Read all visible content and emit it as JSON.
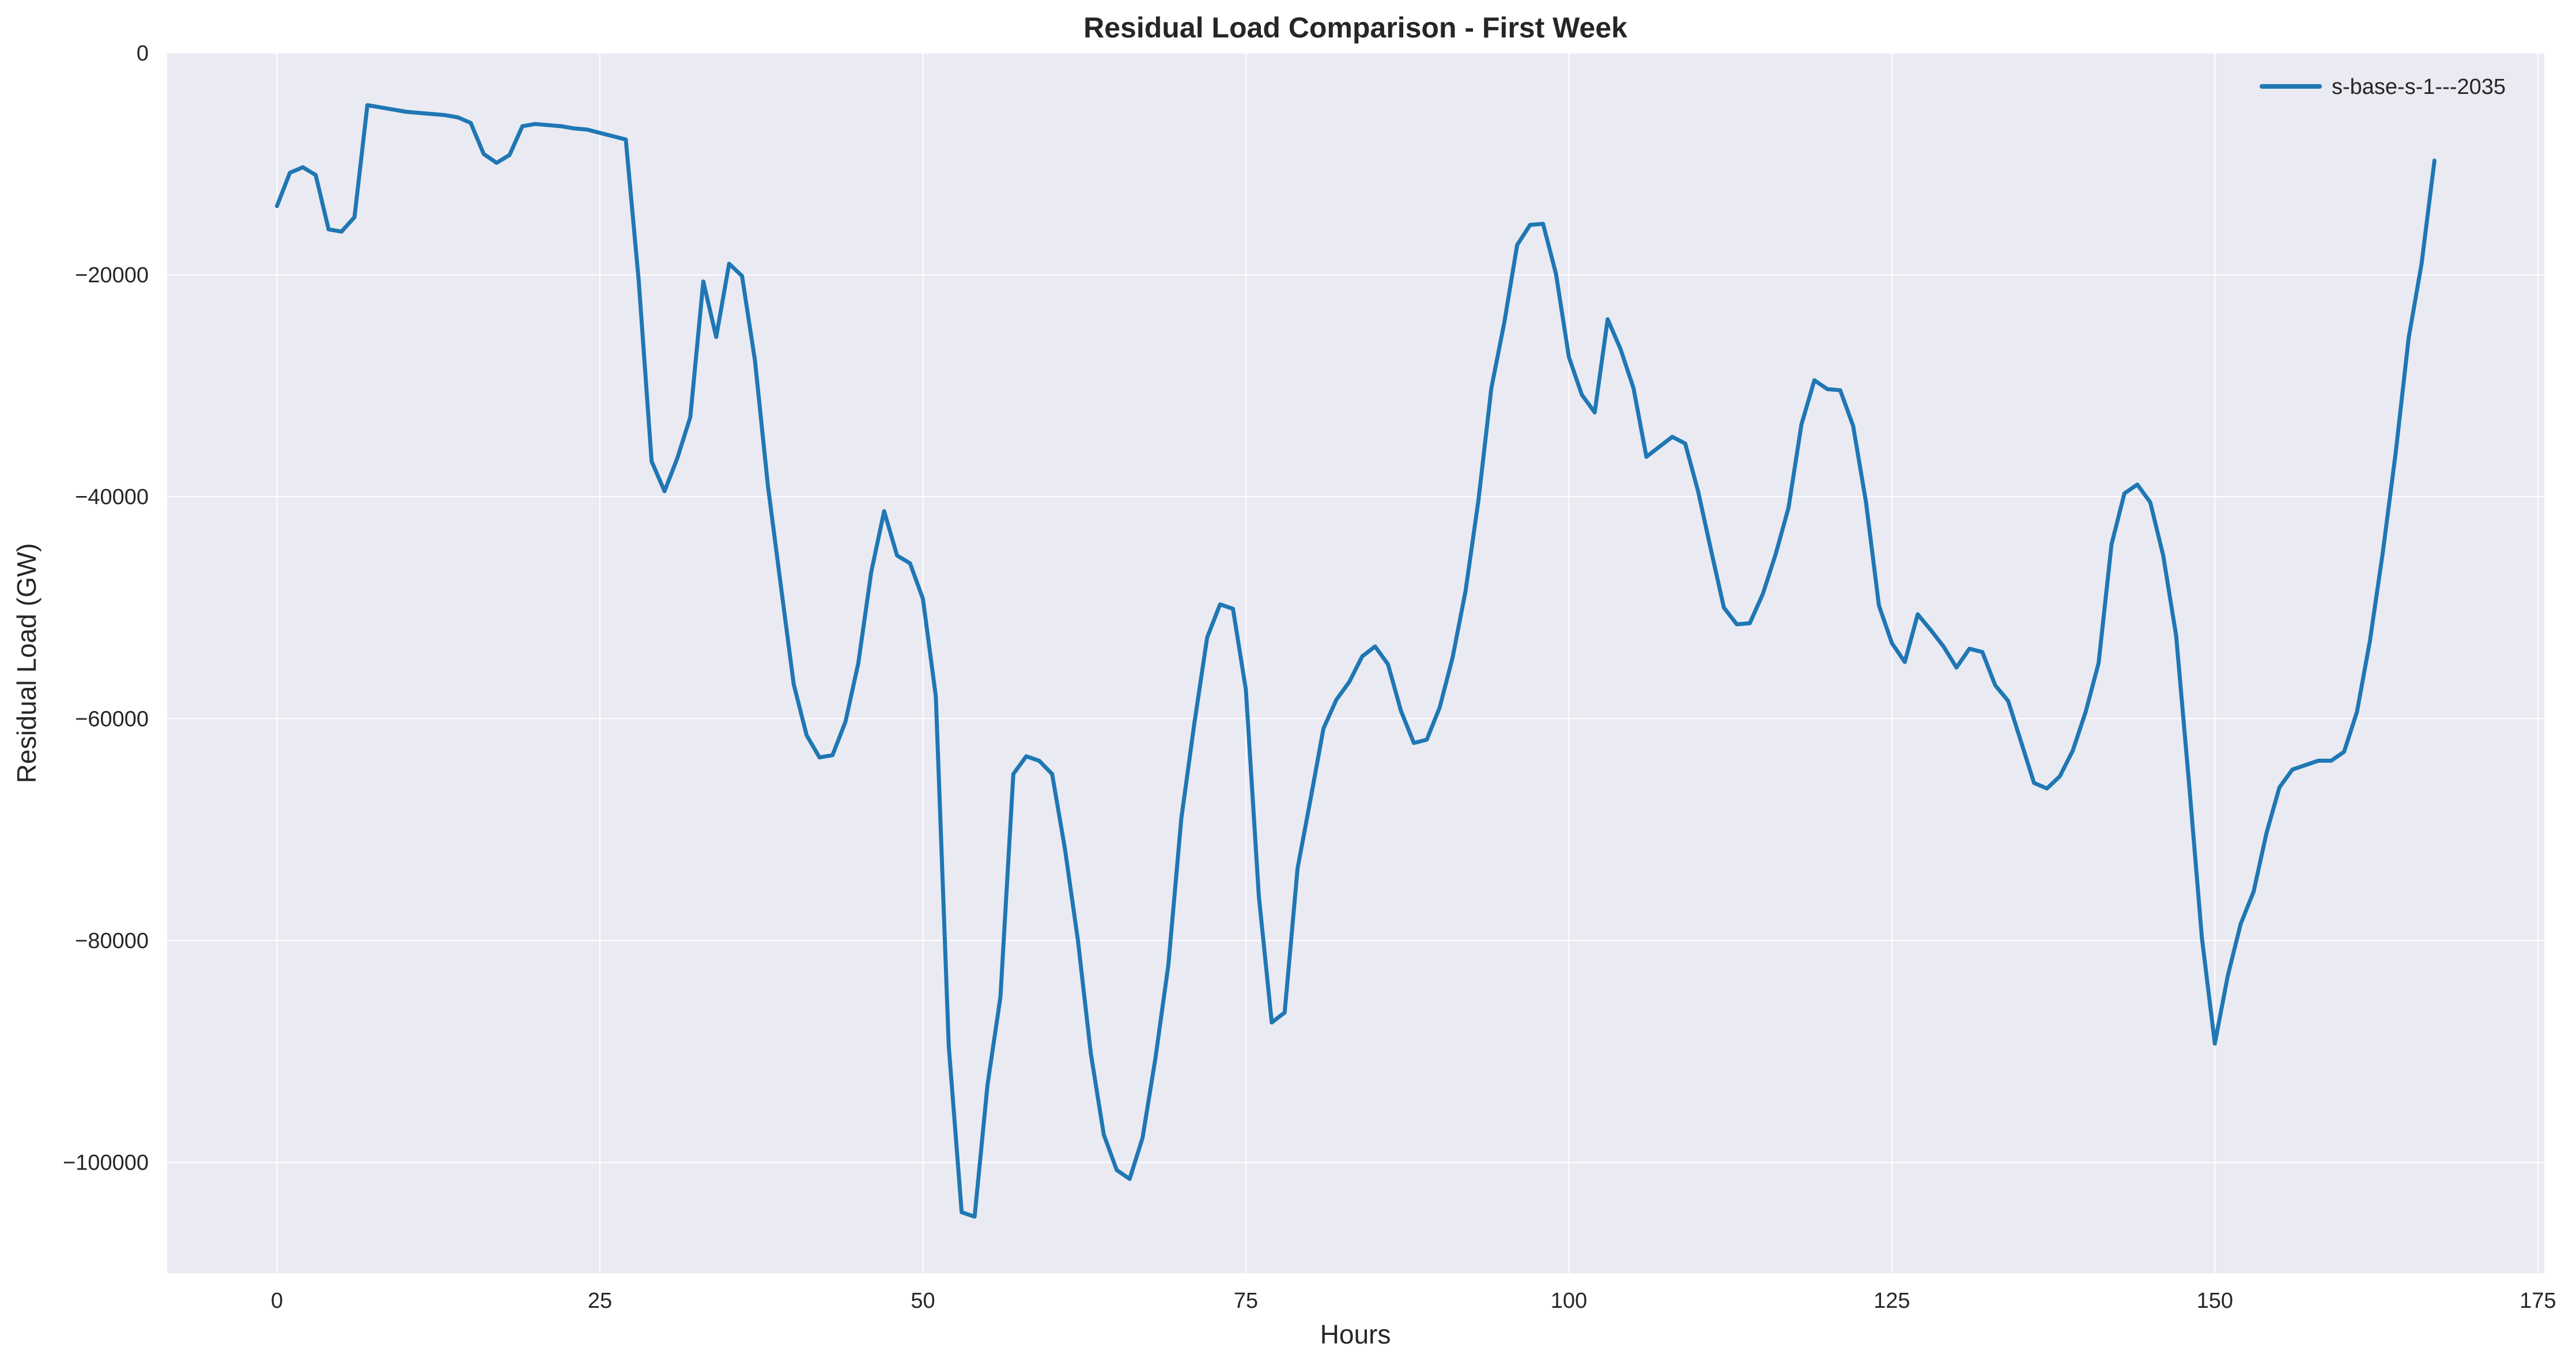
{
  "chart_data": {
    "type": "line",
    "title": "Residual Load Comparison - First Week",
    "xlabel": "Hours",
    "ylabel": "Residual Load (GW)",
    "xlim": [
      -8.5,
      175.5
    ],
    "ylim": [
      -110000,
      0
    ],
    "xticks": [
      0,
      25,
      50,
      75,
      100,
      125,
      150,
      175
    ],
    "yticks": [
      0,
      -20000,
      -40000,
      -60000,
      -80000,
      -100000
    ],
    "xtick_labels": [
      "0",
      "25",
      "50",
      "75",
      "100",
      "125",
      "150",
      "175"
    ],
    "ytick_labels": [
      "0",
      "−20000",
      "−40000",
      "−60000",
      "−80000",
      "−100000"
    ],
    "grid": true,
    "legend_position": "top-right",
    "colors": {
      "series": "#1f77b4",
      "plot_bg": "#eaeaf2",
      "grid": "#ffffff",
      "text": "#262626"
    },
    "series": [
      {
        "name": "s-base-s-1---2035",
        "x": [
          0,
          1,
          2,
          3,
          4,
          5,
          6,
          7,
          8,
          9,
          10,
          11,
          12,
          13,
          14,
          15,
          16,
          17,
          18,
          19,
          20,
          21,
          22,
          23,
          24,
          25,
          26,
          27,
          28,
          29,
          30,
          31,
          32,
          33,
          34,
          35,
          36,
          37,
          38,
          39,
          40,
          41,
          42,
          43,
          44,
          45,
          46,
          47,
          48,
          49,
          50,
          51,
          52,
          53,
          54,
          55,
          56,
          57,
          58,
          59,
          60,
          61,
          62,
          63,
          64,
          65,
          66,
          67,
          68,
          69,
          70,
          71,
          72,
          73,
          74,
          75,
          76,
          77,
          78,
          79,
          80,
          81,
          82,
          83,
          84,
          85,
          86,
          87,
          88,
          89,
          90,
          91,
          92,
          93,
          94,
          95,
          96,
          97,
          98,
          99,
          100,
          101,
          102,
          103,
          104,
          105,
          106,
          107,
          108,
          109,
          110,
          111,
          112,
          113,
          114,
          115,
          116,
          117,
          118,
          119,
          120,
          121,
          122,
          123,
          124,
          125,
          126,
          127,
          128,
          129,
          130,
          131,
          132,
          133,
          134,
          135,
          136,
          137,
          138,
          139,
          140,
          141,
          142,
          143,
          144,
          145,
          146,
          147,
          148,
          149,
          150,
          151,
          152,
          153,
          154,
          155,
          156,
          157,
          158,
          159,
          160,
          161,
          162,
          163,
          164,
          165,
          166,
          167
        ],
        "values": [
          -13800,
          -10800,
          -10300,
          -11000,
          -15900,
          -16100,
          -14800,
          -4700,
          -4900,
          -5100,
          -5300,
          -5400,
          -5500,
          -5600,
          -5800,
          -6300,
          -9100,
          -9900,
          -9200,
          -6600,
          -6400,
          -6500,
          -6600,
          -6800,
          -6900,
          -7200,
          -7500,
          -7800,
          -20500,
          -36800,
          -39500,
          -36500,
          -32800,
          -20600,
          -25600,
          -19000,
          -20100,
          -27700,
          -39000,
          -48000,
          -56900,
          -61500,
          -63500,
          -63300,
          -60300,
          -55000,
          -46800,
          -41300,
          -45300,
          -46000,
          -49200,
          -58000,
          -89500,
          -104500,
          -104900,
          -93000,
          -85100,
          -65000,
          -63400,
          -63800,
          -65000,
          -71800,
          -80000,
          -90200,
          -97500,
          -100700,
          -101500,
          -97800,
          -90600,
          -82200,
          -69000,
          -60500,
          -52700,
          -49700,
          -50100,
          -57400,
          -76000,
          -87400,
          -86500,
          -73500,
          -67300,
          -60900,
          -58300,
          -56700,
          -54400,
          -53500,
          -55100,
          -59300,
          -62200,
          -61900,
          -59000,
          -54500,
          -48500,
          -40300,
          -30200,
          -24300,
          -17300,
          -15500,
          -15400,
          -19900,
          -27400,
          -30800,
          -32400,
          -24000,
          -26700,
          -30200,
          -36400,
          -35500,
          -34600,
          -35200,
          -39500,
          -44800,
          -50000,
          -51500,
          -51400,
          -48800,
          -45200,
          -41000,
          -33500,
          -29500,
          -30300,
          -30400,
          -33600,
          -40500,
          -49800,
          -53200,
          -54900,
          -50600,
          -52000,
          -53500,
          -55400,
          -53700,
          -54000,
          -57000,
          -58400,
          -62100,
          -65800,
          -66300,
          -65200,
          -62900,
          -59400,
          -55000,
          -44300,
          -39700,
          -38900,
          -40500,
          -45300,
          -52500,
          -65800,
          -79800,
          -89300,
          -83200,
          -78500,
          -75600,
          -70300,
          -66200,
          -64600,
          -64200,
          -63800,
          -63800,
          -63000,
          -59400,
          -53000,
          -45000,
          -36000,
          -25700,
          -19000,
          -9700
        ]
      }
    ]
  }
}
